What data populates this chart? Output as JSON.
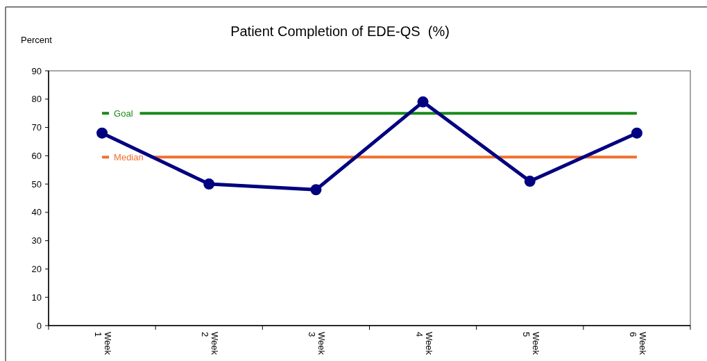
{
  "chart_data": {
    "type": "line",
    "title": "Patient Completion of EDE-QS  (%)",
    "ylabel": "Percent",
    "categories": [
      "Week 1",
      "Week 2",
      "Week 3",
      "Week 4",
      "Week 5",
      "Week 6"
    ],
    "series": [
      {
        "color": "#000080",
        "values": [
          68,
          50,
          48,
          79,
          51,
          68
        ]
      }
    ],
    "ylim": [
      0,
      90
    ],
    "yticks": [
      0,
      10,
      20,
      30,
      40,
      50,
      60,
      70,
      80,
      90
    ],
    "ref_lines": [
      {
        "axis": "y",
        "value": 75,
        "label": "Goal",
        "color": "#1a8a1a"
      },
      {
        "axis": "y",
        "value": 59.5,
        "label": "Median",
        "color": "#f07030"
      }
    ],
    "marker": "circle",
    "line_style": "solid"
  }
}
